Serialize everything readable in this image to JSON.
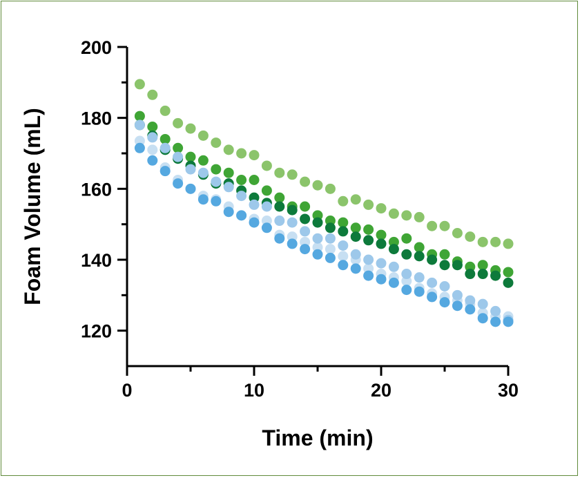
{
  "chart_data": {
    "type": "scatter",
    "title": "",
    "xlabel": "Time (min)",
    "ylabel": "Foam Volume (mL)",
    "xlim": [
      0,
      30
    ],
    "ylim": [
      110,
      200
    ],
    "x_ticks": [
      0,
      10,
      20,
      30
    ],
    "x_ticks_minor": [
      5,
      15,
      25
    ],
    "y_ticks": [
      120,
      140,
      160,
      180,
      200
    ],
    "y_ticks_minor": [
      130,
      150,
      170,
      190
    ],
    "grid": false,
    "legend": "none",
    "series": [
      {
        "color": "#8bc46b",
        "x": [
          1,
          2,
          3,
          4,
          5,
          6,
          7,
          8,
          9,
          10,
          11,
          12,
          13,
          14,
          15,
          16,
          17,
          18,
          19,
          20,
          21,
          22,
          23,
          24,
          25,
          26,
          27,
          28,
          29,
          30
        ],
        "y": [
          189.5,
          186.5,
          182,
          178.5,
          177,
          175,
          173,
          171,
          170,
          169.5,
          166.5,
          164.5,
          164,
          162,
          161,
          160,
          156.5,
          157,
          155.5,
          154.5,
          153,
          152.5,
          152,
          149.5,
          149.5,
          147.5,
          146.5,
          145,
          145,
          144.5
        ]
      },
      {
        "color": "#3fa535",
        "x": [
          1,
          2,
          3,
          4,
          5,
          6,
          7,
          8,
          9,
          10,
          11,
          12,
          13,
          14,
          15,
          16,
          17,
          18,
          19,
          20,
          21,
          22,
          23,
          24,
          25,
          26,
          27,
          28,
          29,
          30
        ],
        "y": [
          180.5,
          177.5,
          174,
          171.5,
          169,
          168,
          165.5,
          164.5,
          162.5,
          162.5,
          159.5,
          157.5,
          155,
          155,
          152.5,
          151,
          150.5,
          149,
          148.5,
          147,
          145,
          146,
          143.5,
          141.5,
          141.5,
          139.5,
          138,
          138.5,
          137,
          136.5
        ]
      },
      {
        "color": "#0d7a3b",
        "x": [
          1,
          2,
          3,
          4,
          5,
          6,
          7,
          8,
          9,
          10,
          11,
          12,
          13,
          14,
          15,
          16,
          17,
          18,
          19,
          20,
          21,
          22,
          23,
          24,
          25,
          26,
          27,
          28,
          29,
          30
        ],
        "y": [
          178,
          175,
          171,
          168.5,
          166.5,
          164,
          161.5,
          161.5,
          159.5,
          157.5,
          156,
          155,
          154,
          151.5,
          150.5,
          149,
          148,
          146.5,
          145.5,
          144.5,
          143,
          141.5,
          141,
          140,
          138.5,
          138.5,
          136,
          136,
          135.5,
          133.5
        ]
      },
      {
        "color": "#c7dff2",
        "x": [
          1,
          2,
          3,
          4,
          5,
          6,
          7,
          8,
          9,
          10,
          11,
          12,
          13,
          14,
          15,
          16,
          17,
          18,
          19,
          20,
          21,
          22,
          23,
          24,
          25,
          26,
          27,
          28,
          29,
          30
        ],
        "y": [
          173.5,
          171,
          166,
          162.5,
          160,
          158,
          157,
          155,
          152.5,
          151.5,
          151,
          147,
          146.5,
          145,
          143.5,
          143,
          141,
          140,
          137.5,
          136,
          135,
          134,
          132,
          130.5,
          129.5,
          128.5,
          127.5,
          125,
          124,
          124
        ]
      },
      {
        "color": "#9dc8ea",
        "x": [
          1,
          2,
          3,
          4,
          5,
          6,
          7,
          8,
          9,
          10,
          11,
          12,
          13,
          14,
          15,
          16,
          17,
          18,
          19,
          20,
          21,
          22,
          23,
          24,
          25,
          26,
          27,
          28,
          29,
          30
        ],
        "y": [
          178,
          174.5,
          171.5,
          169,
          165.5,
          164.5,
          162,
          160.5,
          158,
          155.5,
          155,
          151,
          150.5,
          148,
          146,
          146,
          144,
          141.5,
          140,
          139,
          138,
          136,
          135,
          133.5,
          132.5,
          130,
          128.5,
          127.5,
          125.5,
          123
        ]
      },
      {
        "color": "#55a8e0",
        "x": [
          1,
          2,
          3,
          4,
          5,
          6,
          7,
          8,
          9,
          10,
          11,
          12,
          13,
          14,
          15,
          16,
          17,
          18,
          19,
          20,
          21,
          22,
          23,
          24,
          25,
          26,
          27,
          28,
          29,
          30
        ],
        "y": [
          171.5,
          168,
          165,
          161.5,
          160,
          157,
          156.5,
          153.5,
          152.5,
          150.5,
          149,
          146,
          144.5,
          143,
          141.5,
          140.5,
          138.5,
          137.5,
          135.5,
          134.5,
          133.5,
          131.5,
          131,
          129.5,
          128,
          127,
          126,
          123.5,
          122.5,
          122.5
        ]
      }
    ]
  }
}
